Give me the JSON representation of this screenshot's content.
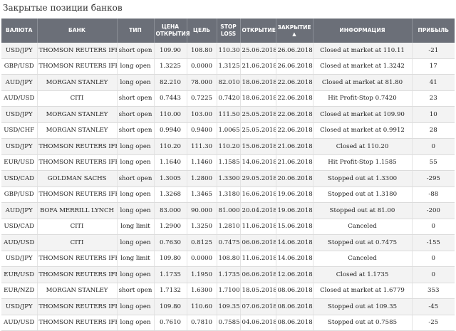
{
  "page_title": "Закрытые позиции банков",
  "columns": {
    "pair": "Валюта",
    "bank": "Банк",
    "type": "Тип",
    "open_price_1": "Цена",
    "open_price_2": "открытия",
    "target": "Цель",
    "stop_1": "Stop",
    "stop_2": "Loss",
    "open_date": "Открытие",
    "close_date": "Закрытие",
    "info": "Информация",
    "profit": "Прибыль"
  },
  "sort_icon": "sort-ascending-arrow",
  "rows": [
    {
      "pair": "USD/JPY",
      "bank": "THOMSON REUTERS IFR",
      "type": "short open",
      "price": "109.90",
      "target": "108.80",
      "stop": "110.30",
      "open": "25.06.2018",
      "close": "26.06.2018",
      "info": "Closed at market at 110.11",
      "profit": "-21"
    },
    {
      "pair": "GBP/USD",
      "bank": "THOMSON REUTERS IFR",
      "type": "long open",
      "price": "1.3225",
      "target": "0.0000",
      "stop": "1.3125",
      "open": "21.06.2018",
      "close": "26.06.2018",
      "info": "Closed at market at 1.3242",
      "profit": "17"
    },
    {
      "pair": "AUD/JPY",
      "bank": "MORGAN STANLEY",
      "type": "long open",
      "price": "82.210",
      "target": "78.000",
      "stop": "82.010",
      "open": "18.06.2018",
      "close": "22.06.2018",
      "info": "Closed at market at 81.80",
      "profit": "41"
    },
    {
      "pair": "AUD/USD",
      "bank": "CITI",
      "type": "short open",
      "price": "0.7443",
      "target": "0.7225",
      "stop": "0.7420",
      "open": "18.06.2018",
      "close": "22.06.2018",
      "info": "Hit Profit-Stop 0.7420",
      "profit": "23"
    },
    {
      "pair": "USD/JPY",
      "bank": "MORGAN STANLEY",
      "type": "short open",
      "price": "110.00",
      "target": "103.00",
      "stop": "111.50",
      "open": "25.05.2018",
      "close": "22.06.2018",
      "info": "Closed at market at 109.90",
      "profit": "10"
    },
    {
      "pair": "USD/CHF",
      "bank": "MORGAN STANLEY",
      "type": "short open",
      "price": "0.9940",
      "target": "0.9400",
      "stop": "1.0065",
      "open": "25.05.2018",
      "close": "22.06.2018",
      "info": "Closed at market at 0.9912",
      "profit": "28"
    },
    {
      "pair": "USD/JPY",
      "bank": "THOMSON REUTERS IFR",
      "type": "long open",
      "price": "110.20",
      "target": "111.30",
      "stop": "110.20",
      "open": "15.06.2018",
      "close": "21.06.2018",
      "info": "Closed at 110.20",
      "profit": "0"
    },
    {
      "pair": "EUR/USD",
      "bank": "THOMSON REUTERS IFR",
      "type": "long open",
      "price": "1.1640",
      "target": "1.1460",
      "stop": "1.1585",
      "open": "14.06.2018",
      "close": "21.06.2018",
      "info": "Hit Profit-Stop 1.1585",
      "profit": "55"
    },
    {
      "pair": "USD/CAD",
      "bank": "GOLDMAN SACHS",
      "type": "short open",
      "price": "1.3005",
      "target": "1.2800",
      "stop": "1.3300",
      "open": "29.05.2018",
      "close": "20.06.2018",
      "info": "Stopped out at 1.3300",
      "profit": "-295"
    },
    {
      "pair": "GBP/USD",
      "bank": "THOMSON REUTERS IFR",
      "type": "long open",
      "price": "1.3268",
      "target": "1.3465",
      "stop": "1.3180",
      "open": "16.06.2018",
      "close": "19.06.2018",
      "info": "Stopped out at 1.3180",
      "profit": "-88"
    },
    {
      "pair": "AUD/JPY",
      "bank": "BOFA MERRILL LYNCH",
      "type": "long open",
      "price": "83.000",
      "target": "90.000",
      "stop": "81.000",
      "open": "20.04.2018",
      "close": "19.06.2018",
      "info": "Stopped out at 81.00",
      "profit": "-200"
    },
    {
      "pair": "USD/CAD",
      "bank": "CITI",
      "type": "long limit",
      "price": "1.2900",
      "target": "1.3250",
      "stop": "1.2810",
      "open": "11.06.2018",
      "close": "15.06.2018",
      "info": "Canceled",
      "profit": "0"
    },
    {
      "pair": "AUD/USD",
      "bank": "CITI",
      "type": "long open",
      "price": "0.7630",
      "target": "0.8125",
      "stop": "0.7475",
      "open": "06.06.2018",
      "close": "14.06.2018",
      "info": "Stopped out at 0.7475",
      "profit": "-155"
    },
    {
      "pair": "USD/JPY",
      "bank": "THOMSON REUTERS IFR",
      "type": "long limit",
      "price": "109.80",
      "target": "0.0000",
      "stop": "108.80",
      "open": "11.06.2018",
      "close": "14.06.2018",
      "info": "Canceled",
      "profit": "0"
    },
    {
      "pair": "EUR/USD",
      "bank": "THOMSON REUTERS IFR",
      "type": "long open",
      "price": "1.1735",
      "target": "1.1950",
      "stop": "1.1735",
      "open": "06.06.2018",
      "close": "12.06.2018",
      "info": "Closed at 1.1735",
      "profit": "0"
    },
    {
      "pair": "EUR/NZD",
      "bank": "MORGAN STANLEY",
      "type": "short open",
      "price": "1.7132",
      "target": "1.6300",
      "stop": "1.7100",
      "open": "18.05.2018",
      "close": "08.06.2018",
      "info": "Closed at market at 1.6779",
      "profit": "353"
    },
    {
      "pair": "USD/JPY",
      "bank": "THOMSON REUTERS IFR",
      "type": "long open",
      "price": "109.80",
      "target": "110.60",
      "stop": "109.35",
      "open": "07.06.2018",
      "close": "08.06.2018",
      "info": "Stopped out at 109.35",
      "profit": "-45"
    },
    {
      "pair": "AUD/USD",
      "bank": "THOMSON REUTERS IFR",
      "type": "long open",
      "price": "0.7610",
      "target": "0.7810",
      "stop": "0.7585",
      "open": "04.06.2018",
      "close": "08.06.2018",
      "info": "Stopped out at 0.7585",
      "profit": "-25"
    }
  ]
}
